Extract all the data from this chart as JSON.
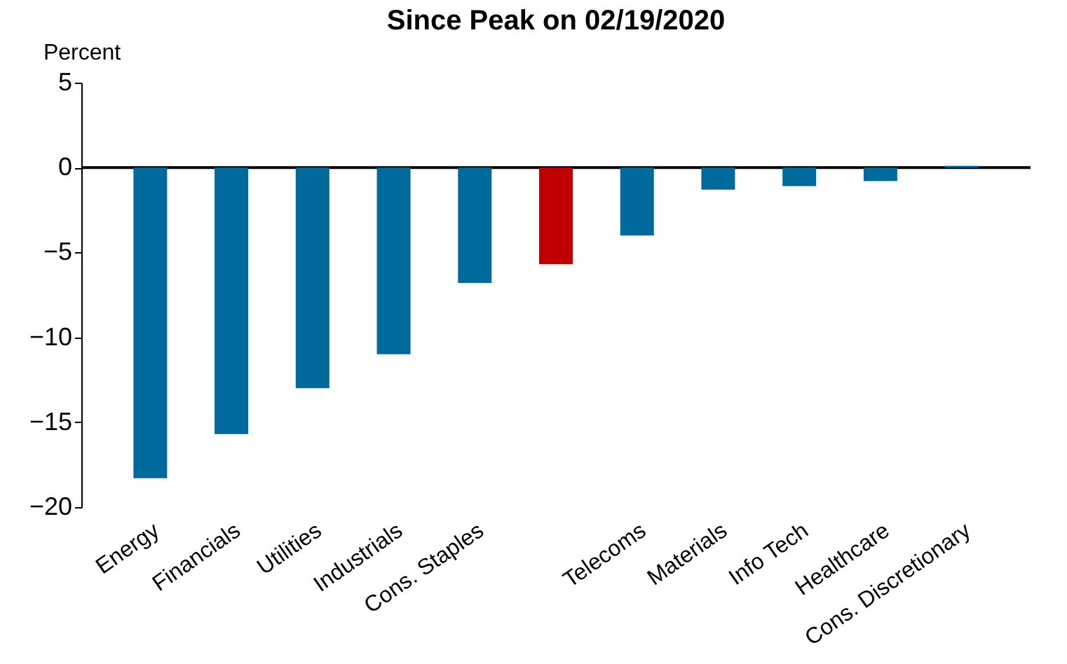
{
  "chart_data": {
    "type": "bar",
    "title": "Since Peak on 02/19/2020",
    "ylabel": "Percent",
    "categories": [
      "Energy",
      "Financials",
      "Utilities",
      "Industrials",
      "Cons. Staples",
      null,
      "Telecoms",
      "Materials",
      "Info Tech",
      "Healthcare",
      "Cons. Discretionary"
    ],
    "values": [
      -18.3,
      -15.7,
      -13.0,
      -11.0,
      -6.8,
      -5.7,
      -4.0,
      -1.3,
      -1.1,
      -0.8,
      0.1
    ],
    "colors": [
      "#006a9c",
      "#006a9c",
      "#006a9c",
      "#006a9c",
      "#006a9c",
      "#c00000",
      "#006a9c",
      "#006a9c",
      "#006a9c",
      "#006a9c",
      "#006a9c"
    ],
    "ylim": [
      -20,
      5
    ],
    "yticks": [
      -20,
      -15,
      -10,
      -5,
      0,
      5
    ],
    "ref_lines": [
      {
        "axis": "y",
        "value": 0,
        "color": "#000000"
      }
    ]
  }
}
